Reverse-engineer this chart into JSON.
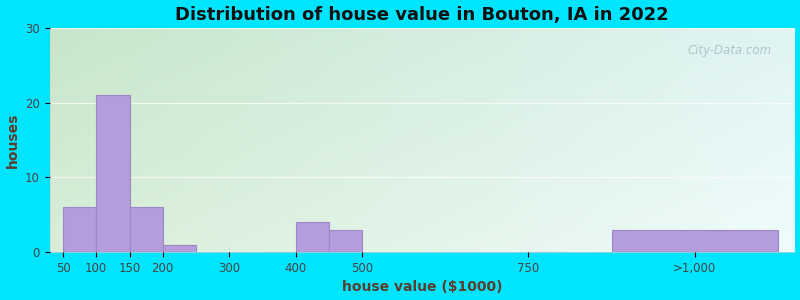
{
  "title": "Distribution of house value in Bouton, IA in 2022",
  "xlabel": "house value ($1000)",
  "ylabel": "houses",
  "tick_labels": [
    "50",
    "100",
    "150",
    "200",
    "300",
    "400",
    "500",
    "750",
    ">1,000"
  ],
  "bar_lefts": [
    50,
    100,
    150,
    200,
    350,
    400,
    450,
    750,
    875
  ],
  "bar_widths": [
    50,
    50,
    50,
    50,
    50,
    50,
    50,
    50,
    250
  ],
  "bar_values": [
    6,
    21,
    6,
    1,
    0,
    4,
    3,
    0,
    3
  ],
  "tick_positions": [
    50,
    100,
    150,
    200,
    300,
    400,
    500,
    750,
    1000
  ],
  "xlim": [
    30,
    1150
  ],
  "ylim": [
    0,
    30
  ],
  "yticks": [
    0,
    10,
    20,
    30
  ],
  "bar_color": "#b39ddb",
  "bar_edge_color": "#9e86c8",
  "background_outer": "#00e5ff",
  "bg_top_left": "#c8e6c9",
  "bg_bottom_right": "#e8f8f8",
  "title_fontsize": 13,
  "axis_label_fontsize": 10,
  "tick_fontsize": 8.5,
  "watermark_text": "City-Data.com",
  "watermark_color": "#aabbc8"
}
